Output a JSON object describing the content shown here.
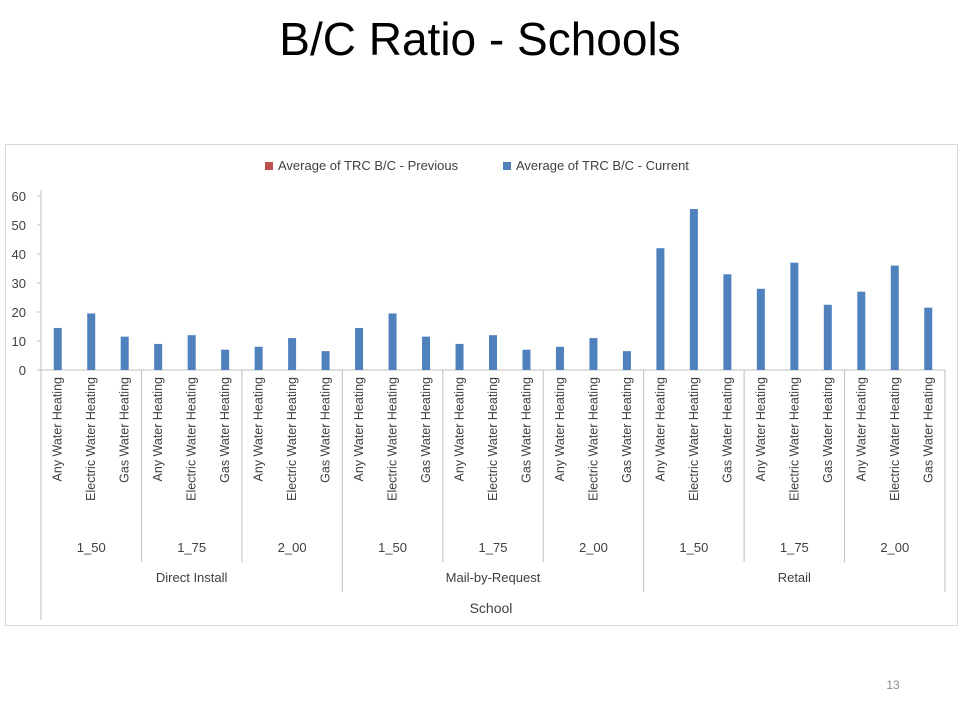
{
  "slide": {
    "title": "B/C Ratio - Schools",
    "page_number": "13"
  },
  "chart_data": {
    "type": "bar",
    "legend_position": "top",
    "grid": false,
    "ylim": [
      0,
      60
    ],
    "yticks": [
      0,
      10,
      20,
      30,
      40,
      50,
      60
    ],
    "axis_title": "School",
    "groups": [
      {
        "channel": "Direct Install",
        "subgroups": [
          "1_50",
          "1_75",
          "2_00"
        ]
      },
      {
        "channel": "Mail-by-Request",
        "subgroups": [
          "1_50",
          "1_75",
          "2_00"
        ]
      },
      {
        "channel": "Retail",
        "subgroups": [
          "1_50",
          "1_75",
          "2_00"
        ]
      }
    ],
    "water_heating_types": [
      "Any Water Heating",
      "Electric Water Heating",
      "Gas Water Heating"
    ],
    "series": [
      {
        "name": "Average of TRC B/C - Previous",
        "color": "#c0504d",
        "values": [
          0,
          0,
          0,
          0,
          0,
          0,
          0,
          0,
          0,
          0,
          0,
          0,
          0,
          0,
          0,
          0,
          0,
          0,
          0,
          0,
          0,
          0,
          0,
          0,
          0,
          0,
          0
        ]
      },
      {
        "name": "Average of TRC B/C - Current",
        "color": "#4f81bd",
        "values": [
          14.5,
          19.5,
          11.5,
          9,
          12,
          7,
          8,
          11,
          6.5,
          14.5,
          19.5,
          11.5,
          9,
          12,
          7,
          8,
          11,
          6.5,
          42,
          55.5,
          33,
          28,
          37,
          22.5,
          27,
          36,
          21.5
        ]
      }
    ]
  }
}
